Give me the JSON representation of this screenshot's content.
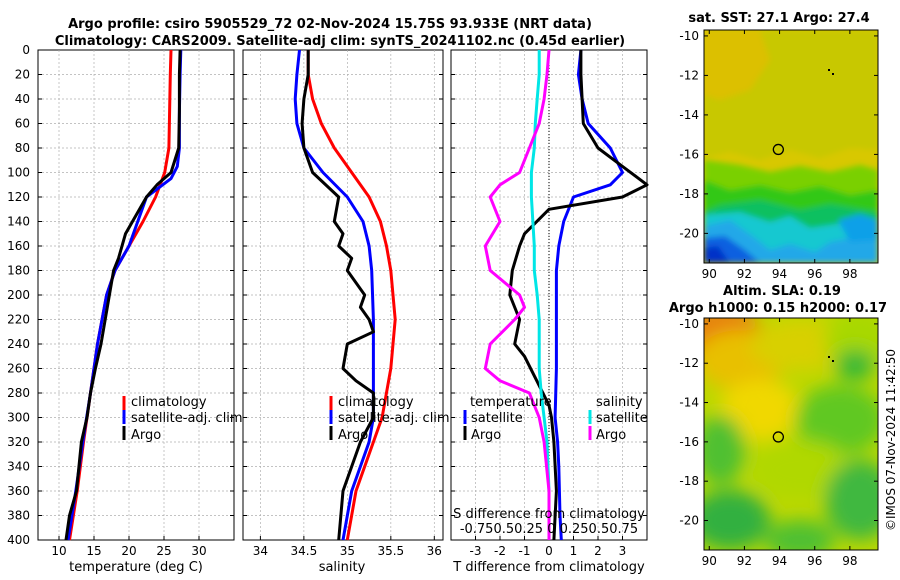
{
  "title": {
    "line1": "Argo profile: csiro 5905529_72 02-Nov-2024 15.75S 93.933E (NRT data)",
    "line2": "Climatology: CARS2009. Satellite-adj clim: synTS_20241102.nc (0.45d earlier)"
  },
  "footer": "©IMOS 07-Nov-2024 11:42:50",
  "colors": {
    "climatology": "#ff0000",
    "satellite": "#0000ff",
    "argo": "#000000",
    "sal_sat": "#00e6e6",
    "sal_argo": "#ff00ff"
  },
  "chart_data": [
    {
      "id": "temp",
      "type": "line",
      "xlabel": "temperature (deg C)",
      "ylabel": "",
      "xlim": [
        7,
        35
      ],
      "ylim": [
        400,
        0
      ],
      "xticks": [
        10,
        15,
        20,
        25,
        30
      ],
      "yticks": [
        0,
        20,
        40,
        60,
        80,
        100,
        120,
        140,
        160,
        180,
        200,
        220,
        240,
        260,
        280,
        300,
        320,
        340,
        360,
        380,
        400
      ],
      "legend": [
        "climatology",
        "satellite-adj. clim",
        "Argo"
      ],
      "series": [
        {
          "name": "climatology",
          "color": "#ff0000",
          "x": [
            26.0,
            25.9,
            25.8,
            25.7,
            25.1,
            23.8,
            22.0,
            20.0,
            18.0,
            16.8,
            15.5,
            14.5,
            13.5,
            12.6,
            11.5
          ],
          "y": [
            0,
            20,
            50,
            80,
            100,
            120,
            140,
            160,
            180,
            200,
            240,
            280,
            320,
            360,
            400
          ]
        },
        {
          "name": "satellite-adj. clim",
          "color": "#0000ff",
          "x": [
            27.4,
            27.3,
            27.2,
            27.2,
            26.9,
            26.0,
            22.5,
            20.0,
            18.0,
            16.8,
            15.5,
            14.5,
            13.4,
            12.4,
            11.3
          ],
          "y": [
            0,
            20,
            50,
            80,
            95,
            105,
            120,
            160,
            180,
            200,
            240,
            280,
            320,
            360,
            400
          ]
        },
        {
          "name": "Argo",
          "color": "#000000",
          "x": [
            27.3,
            27.2,
            27.2,
            27.1,
            26.0,
            24.0,
            22.5,
            21.5,
            20.5,
            19.5,
            19.0,
            18.5,
            17.8,
            17.2,
            16.6,
            16.0,
            15.2,
            14.5,
            14.0,
            13.2,
            12.5,
            11.5,
            11.0
          ],
          "y": [
            0,
            20,
            50,
            80,
            100,
            110,
            120,
            130,
            140,
            150,
            160,
            170,
            180,
            200,
            220,
            240,
            260,
            280,
            300,
            320,
            360,
            380,
            400
          ]
        }
      ]
    },
    {
      "id": "sal",
      "type": "line",
      "xlabel": "salinity",
      "ylabel": "",
      "xlim": [
        33.8,
        36.1
      ],
      "ylim": [
        400,
        0
      ],
      "xticks": [
        34,
        34.5,
        35,
        35.5,
        36
      ],
      "legend": [
        "climatology",
        "satellite-adj. clim",
        "Argo"
      ],
      "series": [
        {
          "name": "climatology",
          "color": "#ff0000",
          "x": [
            34.55,
            34.55,
            34.6,
            34.7,
            34.85,
            35.05,
            35.25,
            35.38,
            35.45,
            35.5,
            35.55,
            35.5,
            35.4,
            35.3,
            35.2,
            35.1,
            35.0
          ],
          "y": [
            0,
            20,
            40,
            60,
            80,
            100,
            120,
            140,
            160,
            180,
            220,
            260,
            300,
            320,
            340,
            360,
            400
          ]
        },
        {
          "name": "satellite-adj. clim",
          "color": "#0000ff",
          "x": [
            34.45,
            34.42,
            34.4,
            34.42,
            34.5,
            34.72,
            35.0,
            35.18,
            35.25,
            35.28,
            35.3,
            35.3,
            35.3,
            35.25,
            35.15,
            35.05,
            34.95
          ],
          "y": [
            0,
            20,
            40,
            60,
            80,
            100,
            120,
            140,
            160,
            180,
            220,
            260,
            300,
            320,
            340,
            360,
            400
          ]
        },
        {
          "name": "Argo",
          "color": "#000000",
          "x": [
            34.55,
            34.55,
            34.5,
            34.48,
            34.5,
            34.6,
            34.9,
            34.85,
            34.95,
            34.9,
            35.05,
            35.0,
            35.2,
            35.15,
            35.25,
            35.3,
            35.0,
            34.95,
            35.1,
            35.3,
            35.3,
            35.15,
            35.05,
            34.95,
            34.9
          ],
          "y": [
            0,
            20,
            40,
            60,
            80,
            100,
            120,
            140,
            150,
            160,
            170,
            180,
            200,
            210,
            220,
            230,
            240,
            260,
            270,
            280,
            300,
            320,
            340,
            360,
            400
          ]
        }
      ]
    },
    {
      "id": "diff",
      "type": "line",
      "xlabel": "T difference from climatology",
      "x2label": "S difference from climatology",
      "x2ticks": [
        -0.75,
        -0.5,
        -0.25,
        0,
        0.25,
        0.5,
        0.75
      ],
      "x2tick_labels": "-0.750.50.25 0 0.250.50.75",
      "xlim": [
        -4,
        4
      ],
      "ylim": [
        400,
        0
      ],
      "xticks": [
        -3,
        -2,
        -1,
        0,
        1,
        2,
        3
      ],
      "legend_temperature": "temperature",
      "legend_salinity": "salinity",
      "legend_items": [
        "satellite",
        "Argo"
      ],
      "series": [
        {
          "name": "T satellite",
          "color": "#0000ff",
          "x": [
            1.3,
            1.2,
            1.35,
            1.6,
            2.5,
            3.0,
            2.5,
            1.0,
            0.6,
            0.4,
            0.3,
            0.3,
            0.3,
            0.25,
            0.35,
            0.4,
            0.45,
            0.5
          ],
          "y": [
            0,
            20,
            40,
            60,
            80,
            100,
            110,
            120,
            140,
            160,
            180,
            220,
            260,
            300,
            320,
            340,
            380,
            400
          ]
        },
        {
          "name": "T Argo",
          "color": "#000000",
          "x": [
            1.3,
            1.3,
            1.4,
            2.0,
            3.0,
            4.0,
            3.0,
            0.0,
            -1.0,
            -1.2,
            -1.5,
            -1.6,
            -1.2,
            -1.4,
            -1.0,
            -0.5,
            0.0,
            0.1,
            0.2,
            0.3,
            0.2
          ],
          "y": [
            0,
            20,
            60,
            80,
            95,
            110,
            120,
            130,
            150,
            160,
            180,
            200,
            220,
            240,
            250,
            270,
            290,
            300,
            320,
            360,
            400
          ]
        },
        {
          "name": "S satellite",
          "color": "#00e6e6",
          "x": [
            -0.1,
            -0.1,
            -0.12,
            -0.14,
            -0.15,
            -0.18,
            -0.18,
            -0.15,
            -0.15,
            -0.12,
            -0.1,
            -0.1,
            -0.1,
            -0.08,
            -0.05,
            -0.02,
            0.0,
            0.0
          ],
          "y": [
            0,
            20,
            40,
            60,
            80,
            100,
            120,
            160,
            180,
            200,
            220,
            240,
            260,
            280,
            300,
            320,
            360,
            400
          ]
        },
        {
          "name": "S Argo",
          "color": "#ff00ff",
          "x": [
            0.0,
            -0.02,
            -0.05,
            -0.1,
            -0.2,
            -0.3,
            -0.5,
            -0.6,
            -0.5,
            -0.65,
            -0.6,
            -0.3,
            -0.25,
            -0.35,
            -0.6,
            -0.65,
            -0.5,
            -0.2,
            -0.1,
            -0.05,
            0.0,
            0.0
          ],
          "y": [
            0,
            20,
            40,
            60,
            80,
            100,
            110,
            120,
            140,
            160,
            180,
            200,
            210,
            220,
            240,
            260,
            270,
            280,
            300,
            320,
            360,
            400
          ]
        }
      ]
    },
    {
      "id": "sst_map",
      "type": "heatmap",
      "title": "sat. SST: 27.1 Argo: 27.4",
      "xlim": [
        89.7,
        99.6
      ],
      "ylim": [
        -21.5,
        -9.7
      ],
      "xticks": [
        90,
        92,
        94,
        96,
        98
      ],
      "yticks": [
        -10,
        -12,
        -14,
        -16,
        -18,
        -20
      ],
      "marker": {
        "lon": 93.93,
        "lat": -15.75
      }
    },
    {
      "id": "sla_map",
      "type": "heatmap",
      "title": "Altim. SLA: 0.19",
      "subtitle": "Argo h1000: 0.15 h2000: 0.17",
      "xlim": [
        89.7,
        99.6
      ],
      "ylim": [
        -21.5,
        -9.7
      ],
      "xticks": [
        90,
        92,
        94,
        96,
        98
      ],
      "yticks": [
        -10,
        -12,
        -14,
        -16,
        -18,
        -20
      ],
      "marker": {
        "lon": 93.93,
        "lat": -15.75
      }
    }
  ]
}
